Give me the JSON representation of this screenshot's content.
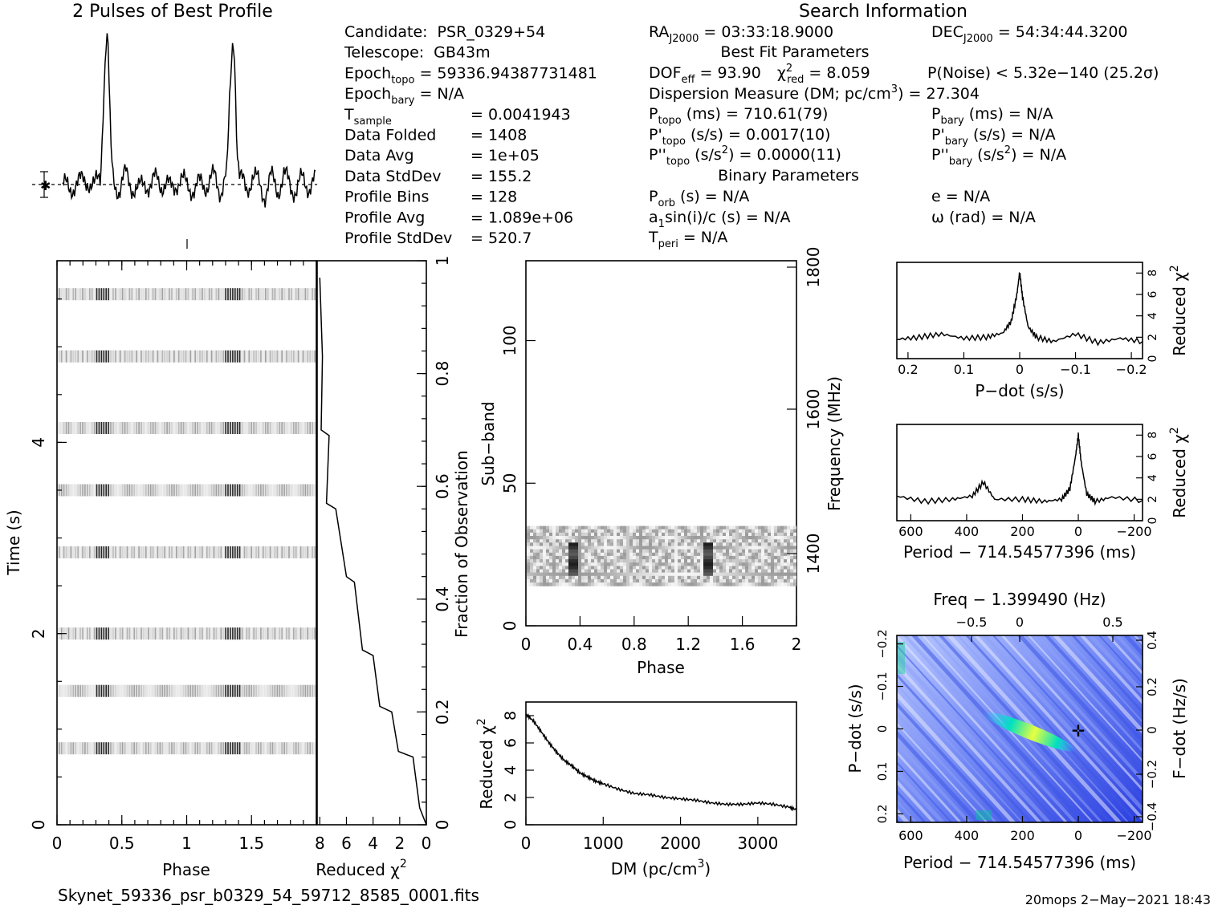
{
  "profile_title": "2 Pulses of Best Profile",
  "search_title": "Search Information",
  "info_col1": [
    {
      "label": "Candidate:",
      "value": "PSR_0329+54"
    },
    {
      "label": "Telescope:",
      "value": "GB43m"
    },
    {
      "label": "Epoch",
      "sub": "topo",
      "value": "= 59336.94387731481"
    },
    {
      "label": "Epoch",
      "sub": "bary",
      "value": "= N/A"
    },
    {
      "label": "T",
      "sub": "sample",
      "value": "=  0.0041943"
    },
    {
      "label": "Data Folded",
      "value": "=  1408"
    },
    {
      "label": "Data Avg",
      "value": "=  1e+05"
    },
    {
      "label": "Data StdDev",
      "value": "=  155.2"
    },
    {
      "label": "Profile Bins",
      "value": "=  128"
    },
    {
      "label": "Profile Avg",
      "value": "=  1.089e+06"
    },
    {
      "label": "Profile StdDev",
      "value": "=  520.7"
    }
  ],
  "ra_text": "RA",
  "ra_sub": "J2000",
  "ra_value": "= 03:33:18.9000",
  "dec_text": "DEC",
  "dec_sub": "J2000",
  "dec_value": "= 54:34:44.3200",
  "best_fit_header": "Best Fit Parameters",
  "dof_label": "DOF",
  "dof_sub": "eff",
  "dof_value": "= 93.90",
  "chi_label": "χ",
  "chi_sup": "2",
  "chi_sub": "red",
  "chi_value": "= 8.059",
  "pnoise_text": "P(Noise) < 5.32e−140   (25.2σ)",
  "dm_text": "Dispersion Measure (DM; pc/cm",
  "dm_sup": "3",
  "dm_value": ") = 27.304",
  "ptopo_label": "P",
  "ptopo_sub": "topo",
  "ptopo_value": "(ms) =  710.61(79)",
  "pdtopo_label": "P'",
  "pdtopo_sub": "topo",
  "pdtopo_value": "(s/s) =  0.0017(10)",
  "pddtopo_label": "P''",
  "pddtopo_sub": "topo",
  "pddtopo_value": "(s/s",
  "pddtopo_sup": "2",
  "pddtopo_value2": ") =  0.0000(11)",
  "pbary_label": "P",
  "pbary_sub": "bary",
  "pbary_value": "(ms) = N/A",
  "pdbary_label": "P'",
  "pdbary_sub": "bary",
  "pdbary_value": "(s/s) = N/A",
  "pddbary_label": "P''",
  "pddbary_sub": "bary",
  "pddbary_value": "(s/s",
  "pddbary_sup": "2",
  "pddbary_value2": ") = N/A",
  "binary_header": "Binary Parameters",
  "porb_label": "P",
  "porb_sub": "orb",
  "porb_value": "(s) = N/A",
  "a1_label": "a",
  "a1_sub": "1",
  "a1_value": "sin(i)/c (s) = N/A",
  "tperi_label": "T",
  "tperi_sub": "peri",
  "tperi_value": "= N/A",
  "ecc_text": "e = N/A",
  "omega_text": "ω (rad) = N/A",
  "filename": "Skynet_59336_psr_b0329_54_59712_8585_0001.fits",
  "footer_right": "20mops  2−May−2021 18:43",
  "chart_data": [
    {
      "type": "line",
      "title": "2 Pulses of Best Profile",
      "x": [
        0,
        0.05,
        0.1,
        0.15,
        0.2,
        0.25,
        0.3,
        0.32,
        0.34,
        0.35,
        0.36,
        0.38,
        0.4,
        0.45,
        0.5,
        0.55,
        0.6,
        0.65,
        0.7,
        0.75,
        0.8,
        0.85,
        0.9,
        0.95,
        1.0,
        1.05,
        1.1,
        1.15,
        1.2,
        1.25,
        1.3,
        1.32,
        1.34,
        1.35,
        1.36,
        1.38,
        1.4,
        1.45,
        1.5,
        1.55,
        1.6,
        1.65,
        1.7,
        1.75,
        1.8,
        1.85,
        1.9,
        1.95,
        2.0
      ],
      "values": [
        0.02,
        -0.1,
        0.05,
        0.0,
        0.08,
        -0.05,
        0.1,
        0.9,
        1.6,
        1.7,
        1.55,
        0.4,
        0.05,
        -0.05,
        0.1,
        0.0,
        -0.1,
        0.06,
        -0.04,
        0.08,
        0.0,
        -0.06,
        0.05,
        0.0,
        0.02,
        -0.1,
        0.05,
        0.0,
        0.08,
        -0.05,
        0.1,
        0.9,
        1.6,
        1.7,
        1.55,
        0.4,
        0.05,
        -0.05,
        0.1,
        0.0,
        -0.1,
        0.06,
        -0.04,
        0.08,
        0.0,
        -0.06,
        0.05,
        0.0,
        0.02
      ]
    },
    {
      "type": "heatmap",
      "xlabel": "Phase",
      "ylabel": "Time (s)",
      "x_ticks": [
        "0",
        "0.5",
        "1",
        "1.5"
      ],
      "y_ticks": [
        "0",
        "2",
        "4"
      ],
      "xlim": [
        0,
        2
      ],
      "ylim": [
        0,
        5.9
      ],
      "row_times": [
        0.8,
        1.4,
        2.0,
        2.85,
        3.5,
        4.15,
        4.9,
        5.55
      ],
      "pulse_phases": [
        0.35,
        1.35
      ]
    },
    {
      "type": "line",
      "xlabel": "Reduced χ2",
      "x_ticks": [
        "8",
        "6",
        "4",
        "2",
        "0"
      ],
      "right_label": "Fraction of Observation",
      "right_ticks": [
        "0",
        "0.2",
        "0.4",
        "0.6",
        "0.8",
        "1"
      ],
      "xlim": [
        8.2,
        0
      ],
      "ylim": [
        0,
        1
      ],
      "chi2": [
        0,
        0.5,
        1.0,
        2.1,
        2.6,
        3.5,
        4.0,
        4.8,
        5.4,
        6.0,
        6.8,
        7.5,
        7.3,
        7.9,
        7.8,
        8.0
      ],
      "fraction": [
        0,
        0.03,
        0.12,
        0.13,
        0.2,
        0.21,
        0.3,
        0.31,
        0.43,
        0.44,
        0.56,
        0.57,
        0.69,
        0.7,
        0.83,
        0.97
      ]
    },
    {
      "type": "heatmap",
      "xlabel": "Phase",
      "ylabel": "Sub-band",
      "right_label": "Frequency (MHz)",
      "x_ticks": [
        "0",
        "0.4",
        "0.8",
        "1.2",
        "1.6",
        "2"
      ],
      "y_ticks": [
        "0",
        "50",
        "100"
      ],
      "right_ticks": [
        "1400",
        "1600",
        "1800"
      ],
      "xlim": [
        0,
        2
      ],
      "ylim": [
        0,
        128
      ],
      "band_range": [
        14,
        35
      ],
      "pulse_phases": [
        0.34,
        1.34
      ]
    },
    {
      "type": "line",
      "xlabel": "DM (pc/cm3)",
      "ylabel": "Reduced χ2",
      "x_ticks": [
        "0",
        "1000",
        "2000",
        "3000"
      ],
      "y_ticks": [
        "0",
        "2",
        "4",
        "6",
        "8"
      ],
      "xlim": [
        0,
        3500
      ],
      "ylim": [
        0,
        9
      ],
      "x": [
        0,
        100,
        200,
        300,
        400,
        500,
        600,
        700,
        800,
        900,
        1000,
        1200,
        1400,
        1600,
        1800,
        2000,
        2200,
        2400,
        2600,
        2800,
        3000,
        3200,
        3400,
        3500
      ],
      "values": [
        8.1,
        7.6,
        6.8,
        6.0,
        5.3,
        4.7,
        4.3,
        3.8,
        3.5,
        3.2,
        3.0,
        2.6,
        2.3,
        2.2,
        2.0,
        1.9,
        1.8,
        1.6,
        1.5,
        1.5,
        1.6,
        1.5,
        1.3,
        1.1
      ]
    },
    {
      "type": "line",
      "xlabel": "P−dot (s/s)",
      "ylabel": "Reduced χ2",
      "x_ticks": [
        "0.2",
        "0.1",
        "0",
        "−0.1",
        "−0.2"
      ],
      "y_ticks": [
        "0",
        "2",
        "4",
        "6",
        "8"
      ],
      "xlim": [
        0.22,
        -0.22
      ],
      "ylim": [
        0,
        9
      ],
      "x": [
        0.22,
        0.18,
        0.14,
        0.1,
        0.06,
        0.03,
        0.015,
        0.005,
        0,
        -0.005,
        -0.015,
        -0.03,
        -0.06,
        -0.1,
        -0.14,
        -0.18,
        -0.22
      ],
      "values": [
        1.8,
        2.0,
        2.3,
        1.9,
        2.0,
        2.4,
        3.5,
        6.0,
        8.1,
        5.8,
        3.0,
        2.0,
        1.6,
        2.3,
        1.5,
        1.9,
        1.6
      ]
    },
    {
      "type": "line",
      "xlabel": "Period − 714.54577396 (ms)",
      "ylabel": "Reduced χ2",
      "x_ticks": [
        "600",
        "400",
        "200",
        "0",
        "−200"
      ],
      "y_ticks": [
        "0",
        "2",
        "4",
        "6",
        "8"
      ],
      "xlim": [
        650,
        -230
      ],
      "ylim": [
        0,
        9
      ],
      "x": [
        650,
        550,
        450,
        380,
        340,
        300,
        200,
        120,
        60,
        30,
        10,
        0,
        -10,
        -30,
        -60,
        -120,
        -230
      ],
      "values": [
        2.3,
        1.8,
        2.0,
        2.3,
        3.6,
        2.0,
        2.0,
        1.8,
        2.0,
        3.0,
        6.0,
        8.0,
        5.5,
        2.5,
        1.8,
        2.2,
        1.9
      ]
    },
    {
      "type": "heatmap",
      "title": "Freq − 1.399490 (Hz)",
      "top_ticks": [
        "−0.5",
        "0",
        "0.5"
      ],
      "xlabel": "Period − 714.54577396 (ms)",
      "ylabel": "P−dot (s/s)",
      "right_label": "F−dot (Hz/s)",
      "x_ticks": [
        "600",
        "400",
        "200",
        "0",
        "−200"
      ],
      "y_ticks": [
        "−0.2",
        "−0.1",
        "0",
        "0.1",
        "0.2"
      ],
      "right_ticks": [
        "0.4",
        "0.2",
        "0",
        "−0.2",
        "−0.4"
      ],
      "xlim": [
        650,
        -230
      ],
      "ylim": [
        -0.22,
        0.22
      ],
      "peak": {
        "period": 180,
        "pdot": 0.0
      },
      "marker": {
        "period": 0,
        "pdot": 0.0
      }
    }
  ]
}
